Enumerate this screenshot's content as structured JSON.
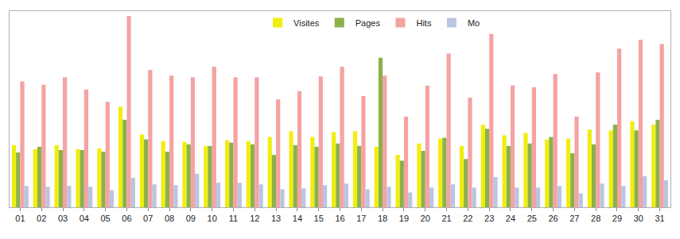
{
  "chart_data": {
    "type": "bar",
    "categories": [
      "01",
      "02",
      "03",
      "04",
      "05",
      "06",
      "07",
      "08",
      "09",
      "10",
      "11",
      "12",
      "13",
      "14",
      "15",
      "16",
      "17",
      "18",
      "19",
      "20",
      "21",
      "22",
      "23",
      "24",
      "25",
      "26",
      "27",
      "28",
      "29",
      "30",
      "31"
    ],
    "series": [
      {
        "name": "Visites",
        "color": "#f0ee10",
        "values": [
          76,
          71,
          76,
          71,
          72,
          123,
          89,
          81,
          80,
          75,
          82,
          81,
          86,
          93,
          86,
          92,
          93,
          74,
          64,
          78,
          84,
          75,
          101,
          88,
          91,
          83,
          84,
          95,
          94,
          105,
          101
        ]
      },
      {
        "name": "Pages",
        "color": "#8cb04a",
        "values": [
          67,
          74,
          70,
          70,
          68,
          107,
          83,
          68,
          77,
          75,
          79,
          77,
          64,
          76,
          74,
          78,
          75,
          183,
          57,
          69,
          85,
          59,
          96,
          75,
          78,
          86,
          66,
          77,
          101,
          94,
          107
        ]
      },
      {
        "name": "Hits",
        "color": "#f4a3a3",
        "values": [
          154,
          150,
          159,
          144,
          129,
          234,
          168,
          161,
          159,
          172,
          159,
          159,
          132,
          142,
          160,
          172,
          136,
          161,
          111,
          149,
          188,
          134,
          212,
          149,
          147,
          163,
          111,
          165,
          194,
          205,
          200
        ]
      },
      {
        "name": "Mo",
        "color": "#b9c5e2",
        "values": [
          26,
          25,
          26,
          25,
          21,
          36,
          28,
          27,
          41,
          30,
          30,
          28,
          22,
          23,
          27,
          29,
          22,
          25,
          18,
          24,
          28,
          24,
          37,
          24,
          24,
          26,
          17,
          29,
          26,
          38,
          33
        ]
      }
    ],
    "ylim": [
      0,
      240
    ],
    "grid": false,
    "legend": "top",
    "tick_labels": "x"
  }
}
